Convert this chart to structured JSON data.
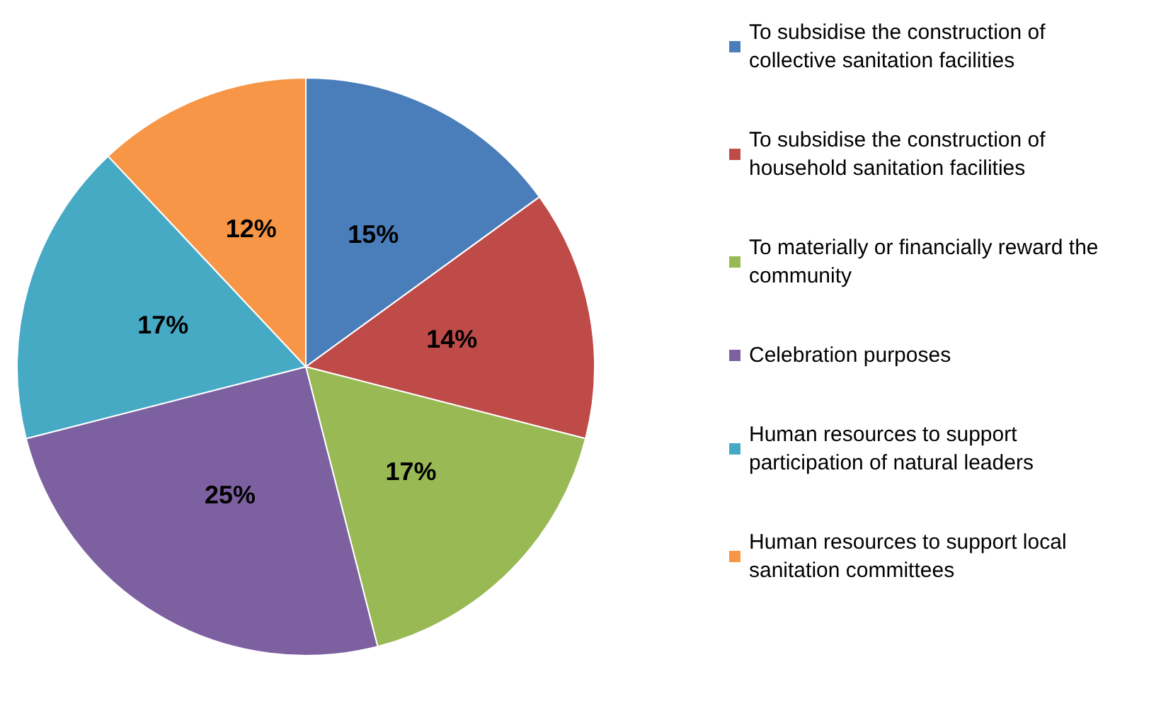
{
  "chart_data": {
    "type": "pie",
    "categories": [
      "To subsidise the construction of collective sanitation facilities",
      "To subsidise the construction of household sanitation facilities",
      "To materially or financially reward the community",
      "Celebration purposes",
      "Human resources to support participation of natural leaders",
      "Human resources to support local sanitation committees"
    ],
    "values": [
      15,
      14,
      17,
      25,
      17,
      12
    ],
    "colors": [
      "#4a7ebb",
      "#be4b48",
      "#98b954",
      "#7d60a0",
      "#46aac5",
      "#f79646"
    ],
    "value_labels": [
      "15%",
      "14%",
      "17%",
      "25%",
      "17%",
      "12%"
    ],
    "legend": "right"
  }
}
